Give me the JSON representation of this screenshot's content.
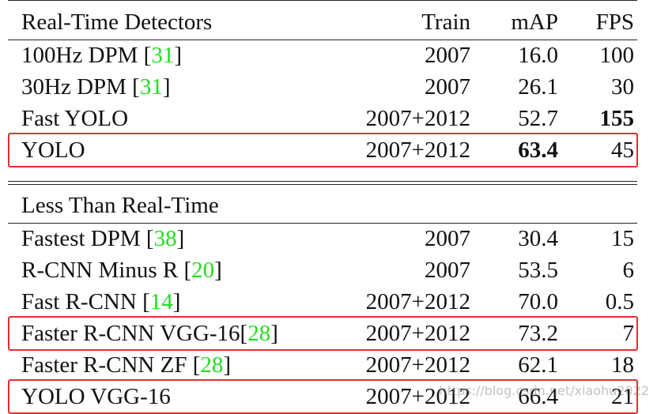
{
  "table": {
    "header": [
      "Real-Time Detectors",
      "Train",
      "mAP",
      "FPS"
    ],
    "sections": [
      {
        "rows": [
          {
            "cells": [
              "100Hz DPM [31]",
              "2007",
              "16.0",
              "100"
            ]
          },
          {
            "cells": [
              "30Hz DPM [31]",
              "2007",
              "26.1",
              "30"
            ]
          },
          {
            "cells": [
              "Fast YOLO",
              "2007+2012",
              "52.7",
              "155"
            ],
            "bold": [
              3
            ]
          },
          {
            "cells": [
              "YOLO",
              "2007+2012",
              "63.4",
              "45"
            ],
            "bold": [
              2
            ],
            "highlight": true
          }
        ]
      },
      {
        "title": "Less Than Real-Time",
        "rows": [
          {
            "cells": [
              "Fastest DPM [38]",
              "2007",
              "30.4",
              "15"
            ]
          },
          {
            "cells": [
              "R-CNN Minus R [20]",
              "2007",
              "53.5",
              "6"
            ]
          },
          {
            "cells": [
              "Fast R-CNN [14]",
              "2007+2012",
              "70.0",
              "0.5"
            ]
          },
          {
            "cells": [
              "Faster R-CNN VGG-16[28]",
              "2007+2012",
              "73.2",
              "7"
            ],
            "highlight": true
          },
          {
            "cells": [
              "Faster R-CNN ZF [28]",
              "2007+2012",
              "62.1",
              "18"
            ]
          },
          {
            "cells": [
              "YOLO VGG-16",
              "2007+2012",
              "66.4",
              "21"
            ],
            "highlight": true
          }
        ]
      }
    ]
  },
  "watermark": "https://blog.csdn.net/xiaohu2022"
}
